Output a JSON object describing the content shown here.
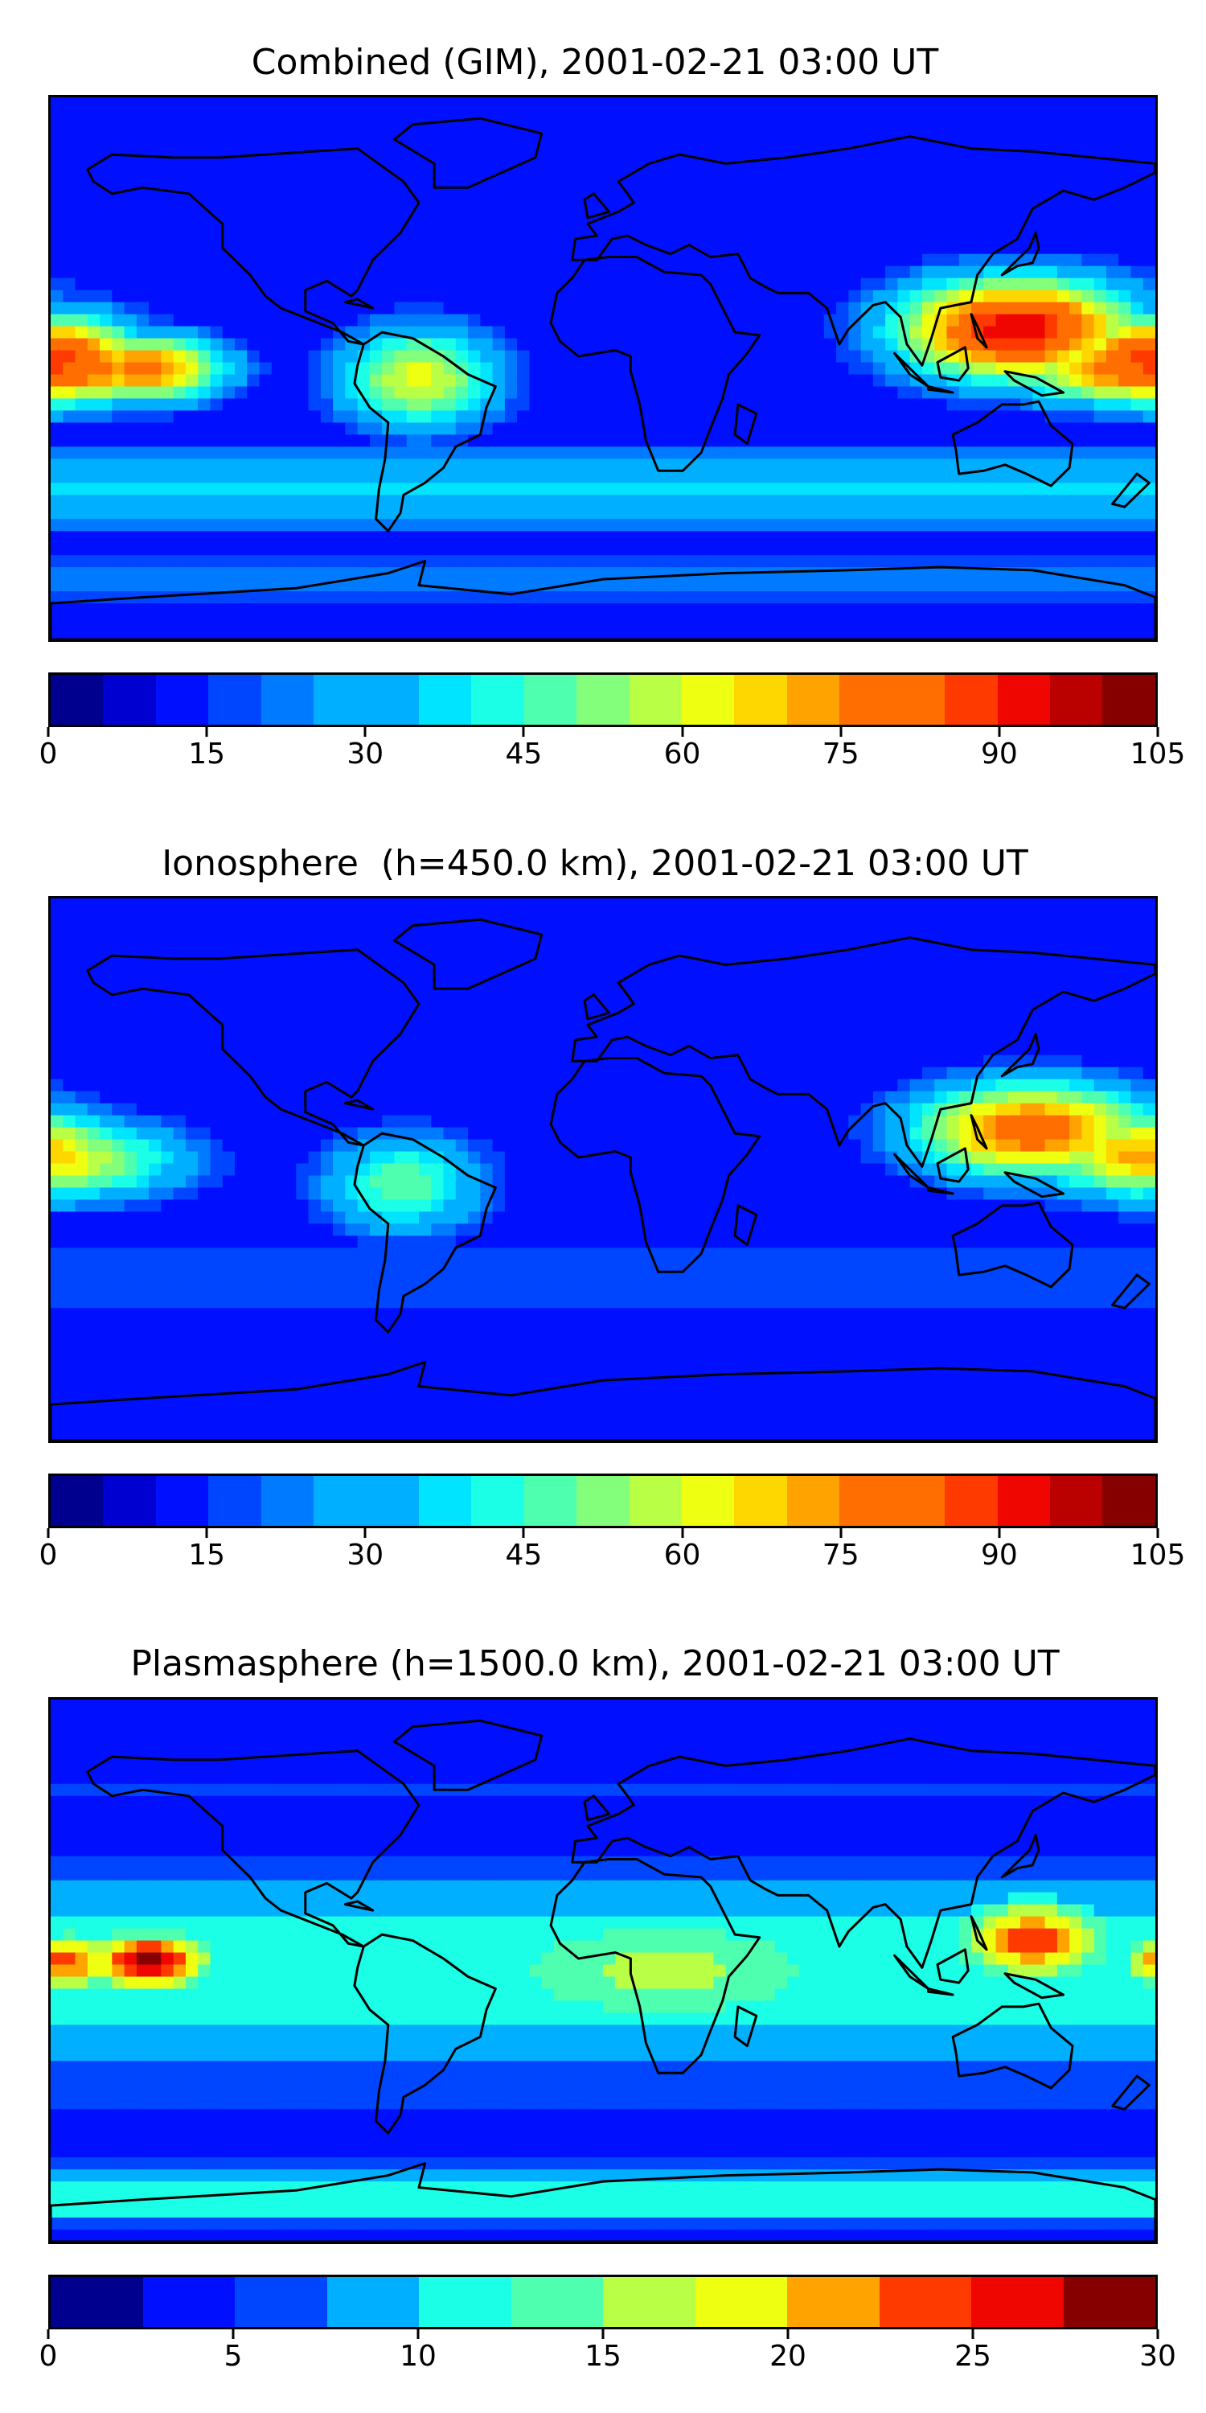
{
  "chart_data": [
    {
      "type": "heatmap",
      "title": "Combined (GIM), 2001-02-21 03:00 UT",
      "xlabel": "",
      "ylabel": "",
      "colorbar": {
        "min": 0,
        "max": 105,
        "step": 5,
        "ticks": [
          "0",
          "15",
          "30",
          "45",
          "60",
          "75",
          "90",
          "105"
        ]
      },
      "hotspots": [
        {
          "lon": -180,
          "lat": 0,
          "value": 85,
          "sx": 38,
          "sy": 10
        },
        {
          "lon": -150,
          "lat": 0,
          "value": 80,
          "sx": 22,
          "sy": 9
        },
        {
          "lon": -60,
          "lat": -3,
          "value": 62,
          "sx": 22,
          "sy": 14
        },
        {
          "lon": 135,
          "lat": 13,
          "value": 95,
          "sx": 32,
          "sy": 14
        },
        {
          "lon": 180,
          "lat": 3,
          "value": 90,
          "sx": 25,
          "sy": 12
        }
      ],
      "zones": [
        {
          "lat": -40,
          "value": 35,
          "w": 12
        },
        {
          "lat": -70,
          "value": 22,
          "w": 8
        }
      ]
    },
    {
      "type": "heatmap",
      "title": "Ionosphere  (h=450.0 km), 2001-02-21 03:00 UT",
      "xlabel": "",
      "ylabel": "",
      "colorbar": {
        "min": 0,
        "max": 105,
        "step": 5,
        "ticks": [
          "0",
          "15",
          "30",
          "45",
          "60",
          "75",
          "90",
          "105"
        ]
      },
      "hotspots": [
        {
          "lon": -180,
          "lat": 3,
          "value": 65,
          "sx": 35,
          "sy": 11
        },
        {
          "lon": -65,
          "lat": -5,
          "value": 50,
          "sx": 22,
          "sy": 14
        },
        {
          "lon": 140,
          "lat": 13,
          "value": 82,
          "sx": 32,
          "sy": 13
        },
        {
          "lon": 175,
          "lat": 5,
          "value": 72,
          "sx": 25,
          "sy": 12
        }
      ],
      "zones": [
        {
          "lat": -35,
          "value": 20,
          "w": 14
        }
      ]
    },
    {
      "type": "heatmap",
      "title": "Plasmasphere (h=1500.0 km), 2001-02-21 03:00 UT",
      "xlabel": "",
      "ylabel": "",
      "colorbar": {
        "min": 0,
        "max": 30,
        "step": 2.5,
        "ticks": [
          "0",
          "5",
          "10",
          "15",
          "20",
          "25",
          "30"
        ]
      },
      "hotspots": [
        {
          "lon": -148,
          "lat": 3,
          "value": 28,
          "sx": 17,
          "sy": 8
        },
        {
          "lon": -175,
          "lat": 3,
          "value": 24,
          "sx": 13,
          "sy": 8
        },
        {
          "lon": 140,
          "lat": 10,
          "value": 24,
          "sx": 22,
          "sy": 11
        },
        {
          "lon": 20,
          "lat": 0,
          "value": 16,
          "sx": 60,
          "sy": 20
        }
      ],
      "zones": [
        {
          "lat": 0,
          "value": 12,
          "w": 30
        },
        {
          "lat": 60,
          "value": 5,
          "w": 12
        },
        {
          "lat": -40,
          "value": 6,
          "w": 9
        },
        {
          "lat": -75,
          "value": 12,
          "w": 9
        }
      ]
    }
  ],
  "colormap": [
    "#00008f",
    "#0000d0",
    "#0010ff",
    "#0045ff",
    "#007aff",
    "#00afff",
    "#00e4ff",
    "#1affe5",
    "#4fffb0",
    "#84ff7b",
    "#b9ff46",
    "#eeff11",
    "#ffd700",
    "#ffa300",
    "#ff6e00",
    "#ff3a00",
    "#f00600",
    "#bb0000",
    "#860000"
  ]
}
